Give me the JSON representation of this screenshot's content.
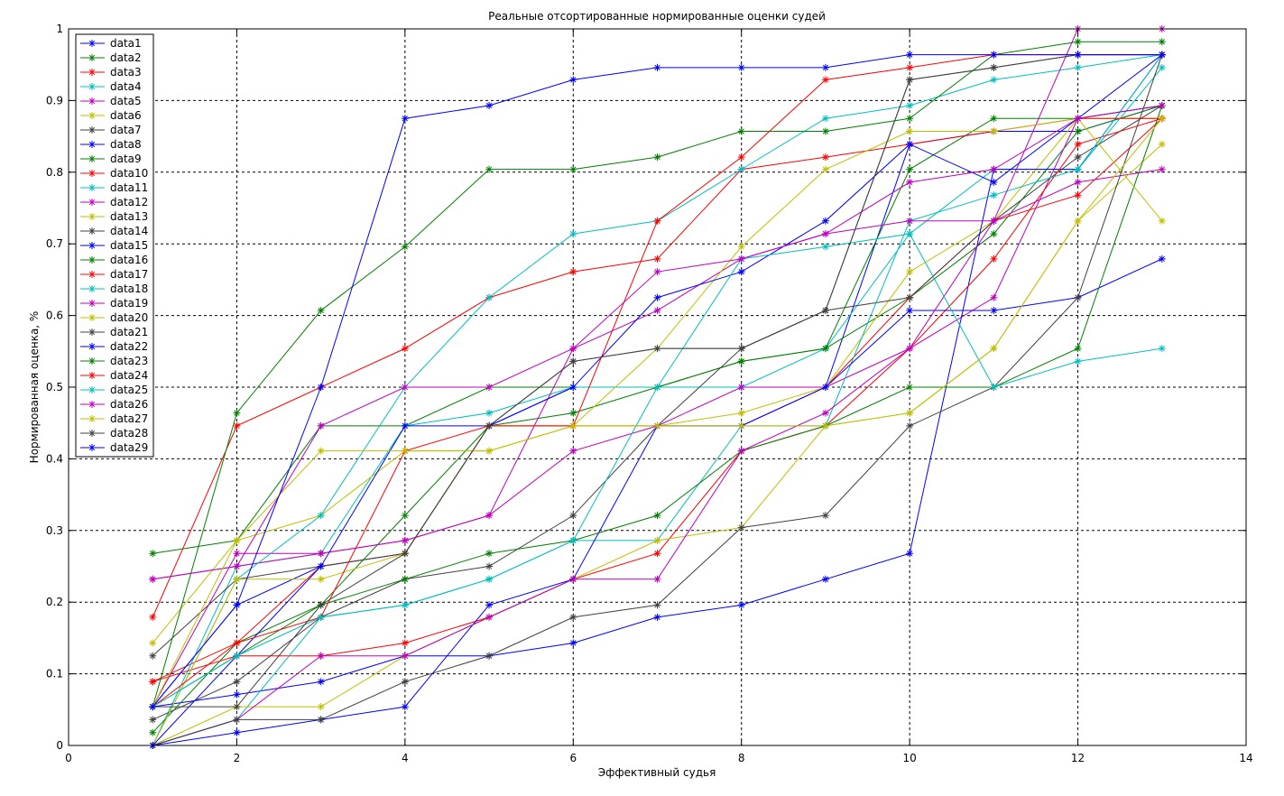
{
  "chart_data": {
    "type": "line",
    "title": "Реальные отсортированные нормированные оценки судей",
    "xlabel": "Эффективный судья",
    "ylabel": "Нормированная оценка, %",
    "xlim": [
      0,
      14
    ],
    "ylim": [
      0,
      1
    ],
    "xticks": [
      "0",
      "2",
      "4",
      "6",
      "8",
      "10",
      "12",
      "14"
    ],
    "yticks": [
      "0",
      "0.1",
      "0.2",
      "0.3",
      "0.4",
      "0.5",
      "0.6",
      "0.7",
      "0.8",
      "0.9",
      "1"
    ],
    "grid": true,
    "legend_position": "top-left",
    "marker": "star",
    "x": [
      1,
      2,
      3,
      4,
      5,
      6,
      7,
      8,
      9,
      10,
      11,
      12,
      13
    ],
    "series": [
      {
        "name": "data1",
        "color": "#0000ff",
        "values": [
          0.054,
          0.196,
          0.25,
          0.268,
          0.446,
          0.5,
          0.5,
          0.5,
          0.5,
          0.839,
          0.857,
          0.857,
          0.893
        ]
      },
      {
        "name": "data2",
        "color": "#008000",
        "values": [
          0.268,
          0.286,
          0.446,
          0.446,
          0.5,
          0.5,
          0.5,
          0.536,
          0.554,
          0.625,
          0.714,
          0.857,
          0.893
        ]
      },
      {
        "name": "data3",
        "color": "#ff0000",
        "values": [
          0.089,
          0.143,
          0.25,
          0.268,
          0.446,
          0.446,
          0.446,
          0.446,
          0.5,
          0.625,
          0.732,
          0.768,
          0.875
        ]
      },
      {
        "name": "data4",
        "color": "#00bfbf",
        "values": [
          0.0,
          0.25,
          0.268,
          0.446,
          0.464,
          0.5,
          0.5,
          0.5,
          0.554,
          0.714,
          0.804,
          0.804,
          0.946
        ]
      },
      {
        "name": "data5",
        "color": "#bf00bf",
        "values": [
          0.232,
          0.25,
          0.268,
          0.286,
          0.321,
          0.411,
          0.446,
          0.5,
          0.5,
          0.554,
          0.625,
          0.875,
          0.893
        ]
      },
      {
        "name": "data6",
        "color": "#bfbf00",
        "values": [
          0.143,
          0.286,
          0.321,
          0.411,
          0.411,
          0.446,
          0.446,
          0.464,
          0.5,
          0.661,
          0.732,
          0.875,
          0.875
        ]
      },
      {
        "name": "data7",
        "color": "#404040",
        "values": [
          0.125,
          0.232,
          0.25,
          0.268,
          0.446,
          0.536,
          0.554,
          0.554,
          0.607,
          0.625,
          0.732,
          0.821,
          0.893
        ]
      },
      {
        "name": "data8",
        "color": "#0000ff",
        "values": [
          0.054,
          0.071,
          0.089,
          0.125,
          0.125,
          0.143,
          0.179,
          0.196,
          0.232,
          0.268,
          0.804,
          0.804,
          0.964
        ]
      },
      {
        "name": "data9",
        "color": "#008000",
        "values": [
          0.018,
          0.143,
          0.196,
          0.321,
          0.446,
          0.464,
          0.5,
          0.536,
          0.554,
          0.804,
          0.875,
          0.875,
          0.893
        ]
      },
      {
        "name": "data10",
        "color": "#ff0000",
        "values": [
          0.089,
          0.125,
          0.125,
          0.143,
          0.179,
          0.232,
          0.268,
          0.411,
          0.446,
          0.554,
          0.679,
          0.839,
          0.875
        ]
      },
      {
        "name": "data11",
        "color": "#00bfbf",
        "values": [
          0.0,
          0.036,
          0.179,
          0.196,
          0.232,
          0.286,
          0.286,
          0.446,
          0.446,
          0.732,
          0.768,
          0.804,
          0.964
        ]
      },
      {
        "name": "data12",
        "color": "#bf00bf",
        "values": [
          0.054,
          0.268,
          0.268,
          0.286,
          0.321,
          0.554,
          0.607,
          0.679,
          0.714,
          0.732,
          0.732,
          0.786,
          0.804
        ]
      },
      {
        "name": "data13",
        "color": "#bfbf00",
        "values": [
          0.0,
          0.054,
          0.054,
          0.125,
          0.179,
          0.232,
          0.286,
          0.304,
          0.446,
          0.464,
          0.554,
          0.732,
          0.839
        ]
      },
      {
        "name": "data14",
        "color": "#404040",
        "values": [
          0.036,
          0.089,
          0.179,
          0.232,
          0.25,
          0.321,
          0.446,
          0.554,
          0.607,
          0.929,
          0.946,
          0.964,
          0.964
        ]
      },
      {
        "name": "data15",
        "color": "#0000ff",
        "values": [
          0.0,
          0.018,
          0.036,
          0.054,
          0.196,
          0.232,
          0.446,
          0.446,
          0.5,
          0.607,
          0.607,
          0.625,
          0.679
        ]
      },
      {
        "name": "data16",
        "color": "#008000",
        "values": [
          0.054,
          0.125,
          0.196,
          0.232,
          0.268,
          0.286,
          0.321,
          0.411,
          0.446,
          0.5,
          0.5,
          0.554,
          0.893
        ]
      },
      {
        "name": "data17",
        "color": "#ff0000",
        "values": [
          0.179,
          0.446,
          0.5,
          0.554,
          0.625,
          0.661,
          0.679,
          0.804,
          0.821,
          0.839,
          0.857,
          0.875,
          0.875
        ]
      },
      {
        "name": "data18",
        "color": "#00bfbf",
        "values": [
          0.0,
          0.232,
          0.321,
          0.5,
          0.625,
          0.714,
          0.732,
          0.804,
          0.875,
          0.893,
          0.929,
          0.946,
          0.964
        ]
      },
      {
        "name": "data19",
        "color": "#bf00bf",
        "values": [
          0.0,
          0.036,
          0.125,
          0.125,
          0.179,
          0.232,
          0.232,
          0.411,
          0.464,
          0.554,
          0.732,
          1.0,
          1.0
        ]
      },
      {
        "name": "data20",
        "color": "#bfbf00",
        "values": [
          0.0,
          0.232,
          0.232,
          0.268,
          0.446,
          0.446,
          0.554,
          0.696,
          0.804,
          0.857,
          0.857,
          0.875,
          0.732
        ]
      },
      {
        "name": "data21",
        "color": "#404040",
        "values": [
          0.0,
          0.036,
          0.036,
          0.089,
          0.125,
          0.179,
          0.196,
          0.304,
          0.321,
          0.446,
          0.5,
          0.625,
          0.964
        ]
      },
      {
        "name": "data22",
        "color": "#0000ff",
        "values": [
          0.0,
          0.125,
          0.25,
          0.446,
          0.446,
          0.5,
          0.625,
          0.661,
          0.732,
          0.839,
          0.786,
          0.875,
          0.964
        ]
      },
      {
        "name": "data23",
        "color": "#008000",
        "values": [
          0.054,
          0.464,
          0.607,
          0.696,
          0.804,
          0.804,
          0.821,
          0.857,
          0.857,
          0.875,
          0.964,
          0.982,
          0.982
        ]
      },
      {
        "name": "data24",
        "color": "#ff0000",
        "values": [
          0.054,
          0.143,
          0.179,
          0.411,
          0.446,
          0.446,
          0.732,
          0.821,
          0.929,
          0.946,
          0.964,
          0.964,
          0.964
        ]
      },
      {
        "name": "data25",
        "color": "#00bfbf",
        "values": [
          0.054,
          0.125,
          0.179,
          0.196,
          0.232,
          0.286,
          0.5,
          0.679,
          0.696,
          0.714,
          0.5,
          0.536,
          0.554
        ]
      },
      {
        "name": "data26",
        "color": "#bf00bf",
        "values": [
          0.232,
          0.25,
          0.446,
          0.5,
          0.5,
          0.554,
          0.661,
          0.679,
          0.714,
          0.786,
          0.804,
          0.875,
          0.893
        ]
      },
      {
        "name": "data27",
        "color": "#bfbf00",
        "values": [
          0.054,
          0.286,
          0.411,
          0.411,
          0.411,
          0.446,
          0.446,
          0.446,
          0.446,
          0.464,
          0.554,
          0.732,
          0.875
        ]
      },
      {
        "name": "data28",
        "color": "#404040",
        "values": [
          0.054,
          0.054,
          0.196,
          0.268,
          0.446,
          0.536,
          0.554,
          0.554,
          0.607,
          0.929,
          0.946,
          0.964,
          0.964
        ]
      },
      {
        "name": "data29",
        "color": "#0000ff",
        "values": [
          0.054,
          0.196,
          0.5,
          0.875,
          0.893,
          0.929,
          0.946,
          0.946,
          0.946,
          0.964,
          0.964,
          0.964,
          0.964
        ]
      }
    ]
  }
}
